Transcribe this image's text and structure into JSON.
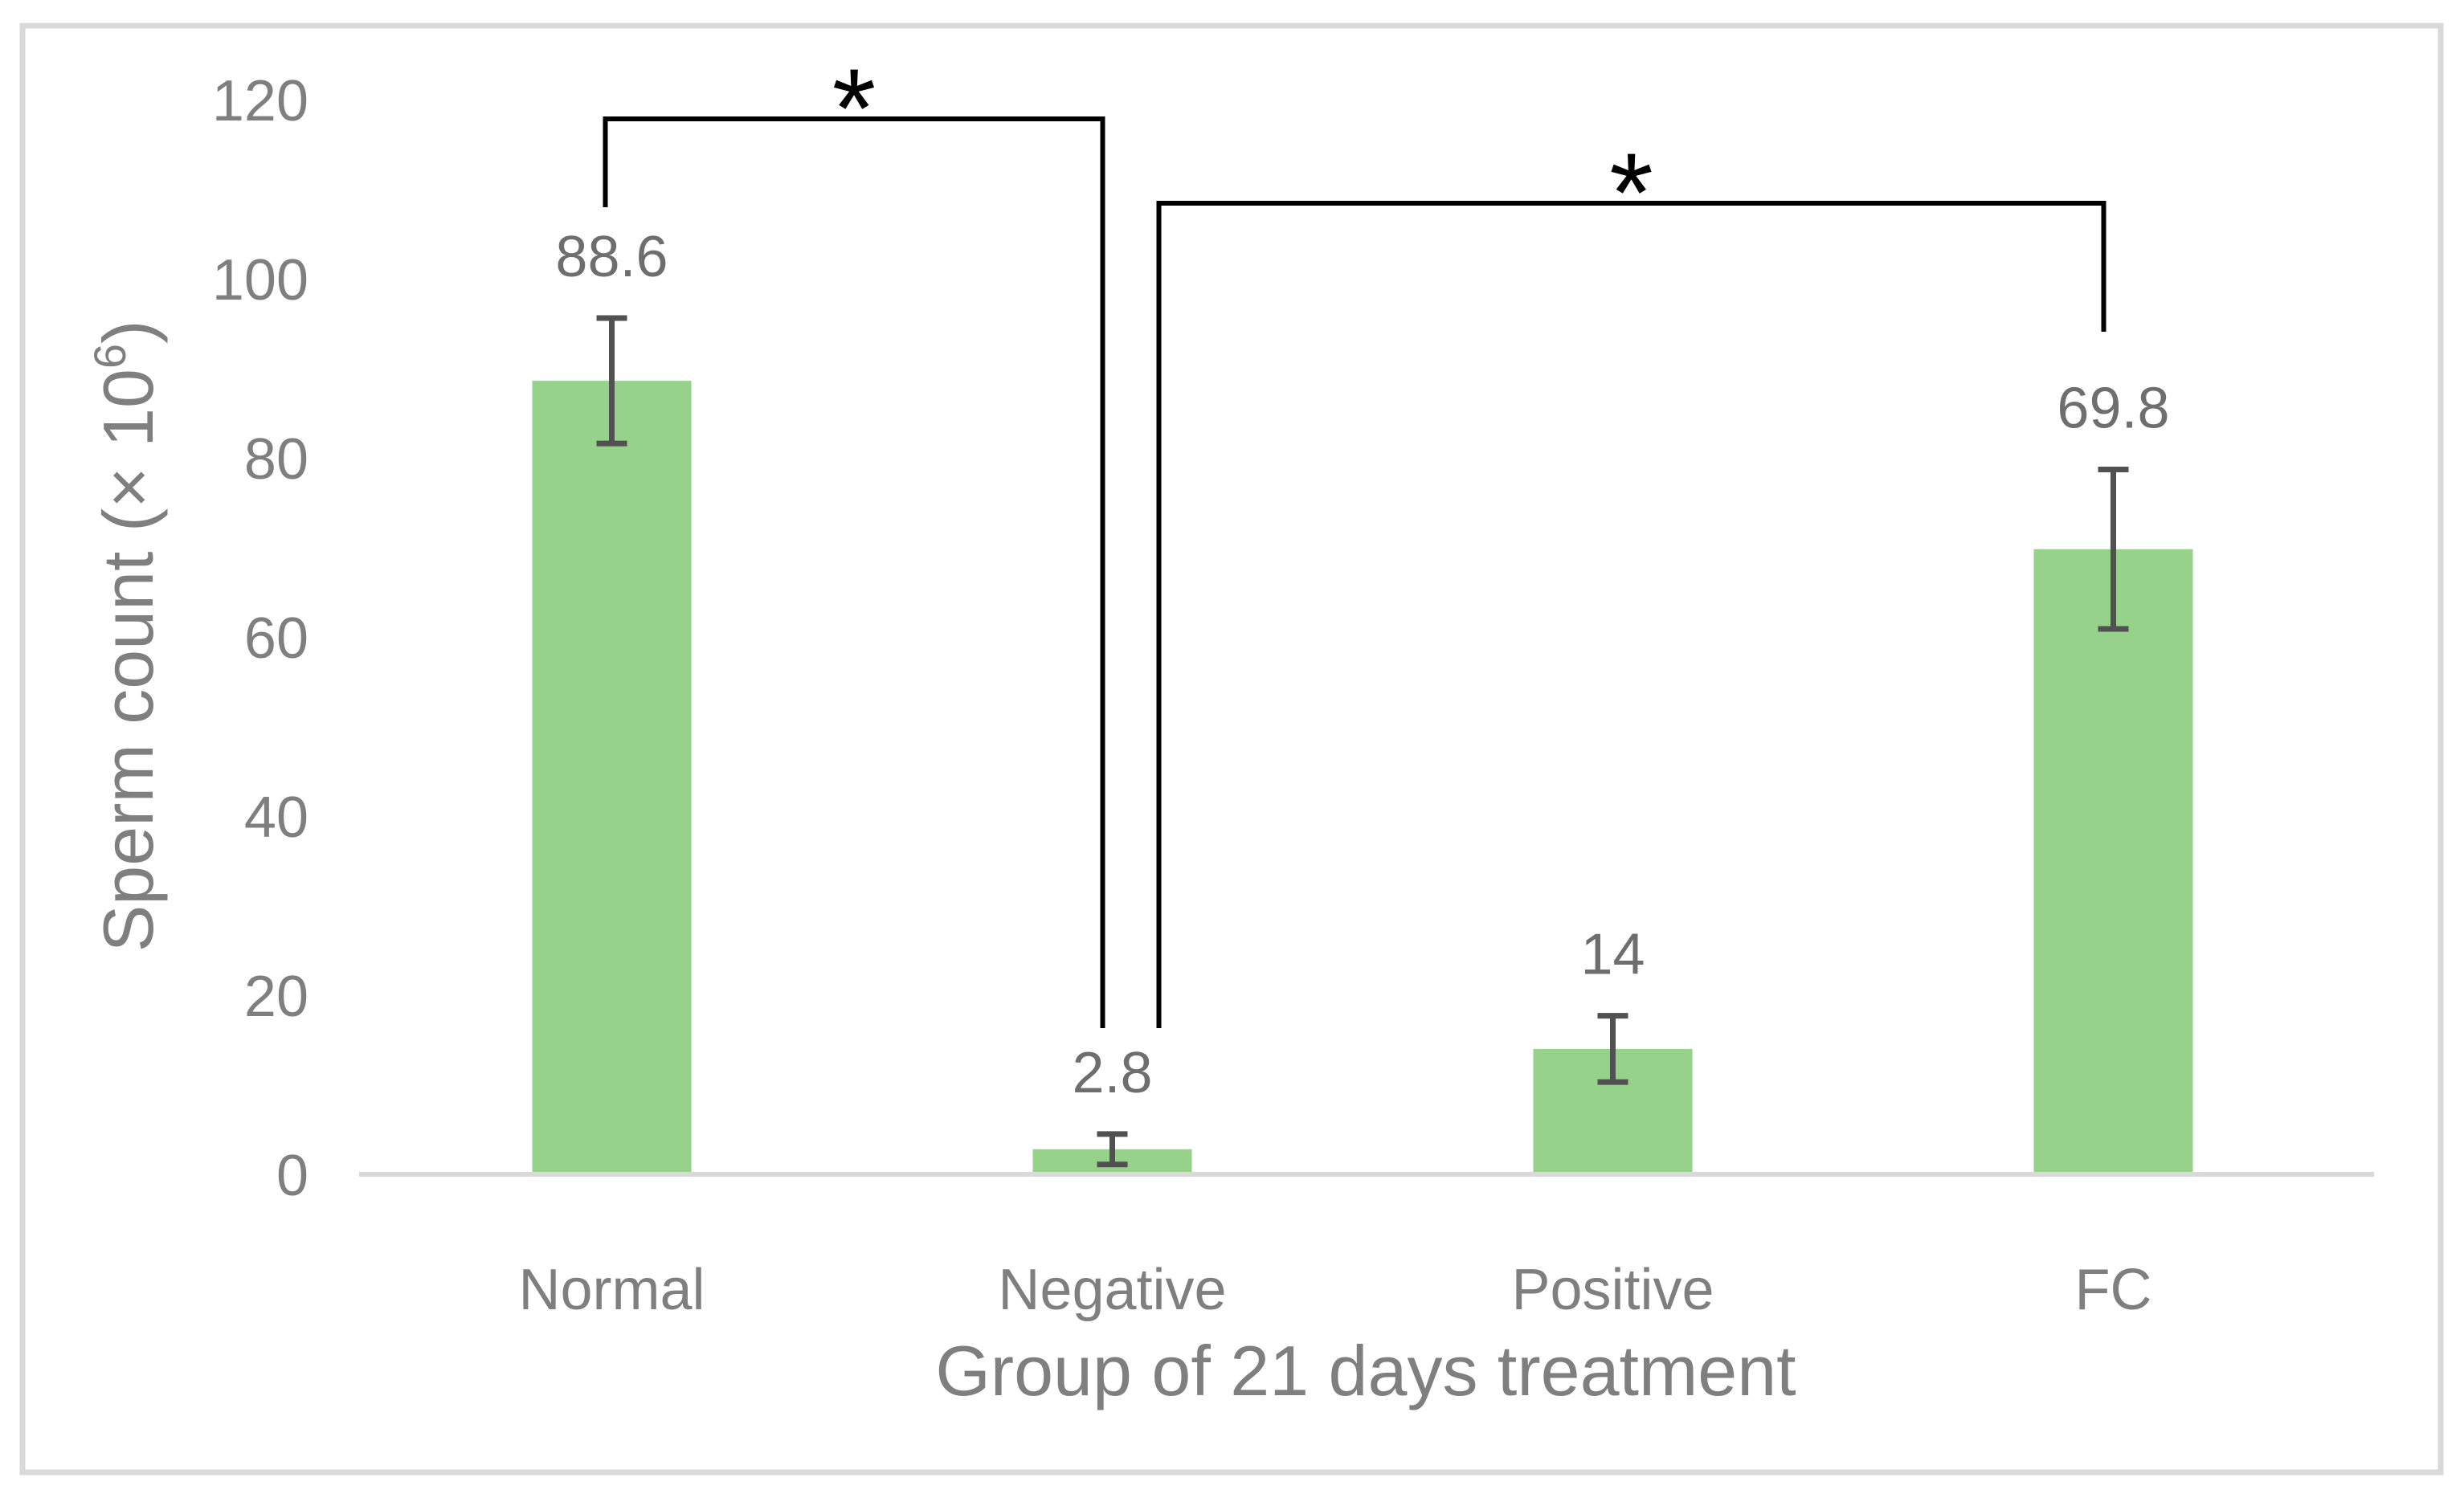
{
  "figure": {
    "background": "#FFFFFF",
    "border_color": "#D9D9D9"
  },
  "chart_data": {
    "type": "bar",
    "title": "",
    "categories": [
      "Normal",
      "Negative",
      "Positive",
      "FC"
    ],
    "values": [
      88.6,
      2.8,
      14,
      69.8
    ],
    "value_labels": [
      "88.6",
      "2.8",
      "14",
      "69.8"
    ],
    "error_bars_plus_minus": [
      7,
      1.7,
      3.7,
      8.9
    ],
    "xlabel": "Group of 21 days treatment",
    "ylabel": "Sperm count (× 10⁶)",
    "ylabel_parts": {
      "main": "Sperm count (× 10",
      "superscript": "6",
      "close": ")"
    },
    "ylim": [
      0,
      120
    ],
    "yticks": [
      0,
      20,
      40,
      60,
      80,
      100,
      120
    ],
    "grid": false,
    "legend": false,
    "bar_color": "#97D28B",
    "error_bar_color": "#515151",
    "axis_text_color": "#7F7F7F",
    "value_label_color": "#6E6E6E",
    "baseline_color": "#D9D9D9",
    "bracket_color": "#000000",
    "significance_brackets": [
      {
        "between": [
          "Normal",
          "Negative"
        ],
        "label": "*"
      },
      {
        "between": [
          "Negative",
          "FC"
        ],
        "label": "*"
      }
    ]
  }
}
